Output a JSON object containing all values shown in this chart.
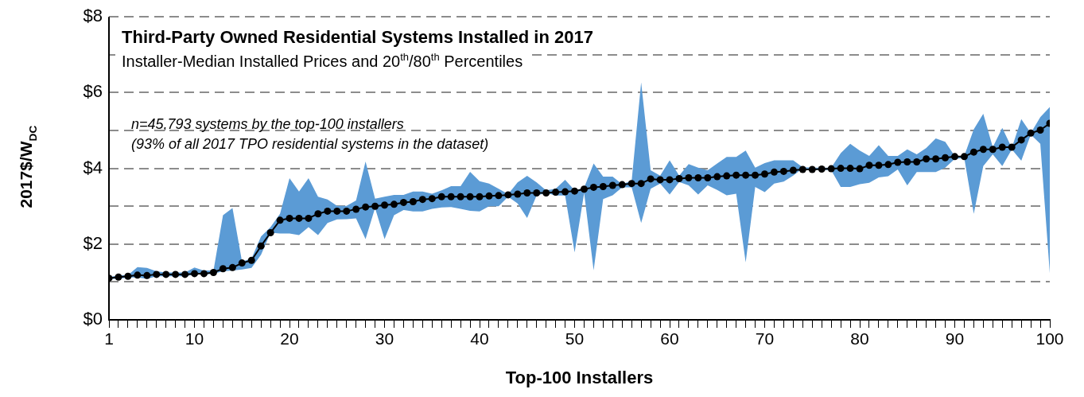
{
  "chart_data": {
    "type": "line",
    "title": "Third-Party Owned Residential Systems Installed in 2017",
    "subtitle": "Installer-Median  Installed Prices and 20$^{th}$/80$^{th}$ Percentiles",
    "xlabel": "Top-100 Installers",
    "ylabel": "2017$/W$_{DC}$",
    "annotations": [
      "n=45,793 systems by the top-100 installers",
      "(93% of all 2017 TPO residential systems in the dataset)"
    ],
    "x": [
      1,
      2,
      3,
      4,
      5,
      6,
      7,
      8,
      9,
      10,
      11,
      12,
      13,
      14,
      15,
      16,
      17,
      18,
      19,
      20,
      21,
      22,
      23,
      24,
      25,
      26,
      27,
      28,
      29,
      30,
      31,
      32,
      33,
      34,
      35,
      36,
      37,
      38,
      39,
      40,
      41,
      42,
      43,
      44,
      45,
      46,
      47,
      48,
      49,
      50,
      51,
      52,
      53,
      54,
      55,
      56,
      57,
      58,
      59,
      60,
      61,
      62,
      63,
      64,
      65,
      66,
      67,
      68,
      69,
      70,
      71,
      72,
      73,
      74,
      75,
      76,
      77,
      78,
      79,
      80,
      81,
      82,
      83,
      84,
      85,
      86,
      87,
      88,
      89,
      90,
      91,
      92,
      93,
      94,
      95,
      96,
      97,
      98,
      99,
      100
    ],
    "series": [
      {
        "color": "#000000",
        "colors": [
          "#5b9bd5",
          "#5b9bd5",
          "#5b9bd5",
          "#5b9bd5",
          "#5b9bd5",
          "#5b9bd5",
          "#5b9bd5",
          "#5b9bd5",
          "#5b9bd5",
          "#5b9bd5",
          "#5b9bd5",
          "#5b9bd5",
          "#5b9bd5",
          "#5b9bd5",
          "#5b9bd5",
          "#5b9bd5",
          "#5b9bd5",
          "#5b9bd5",
          "#5b9bd5",
          "#5b9bd5",
          "#5b9bd5",
          "#5b9bd5",
          "#5b9bd5",
          "#5b9bd5",
          "#5b9bd5",
          "#5b9bd5",
          "#5b9bd5",
          "#5b9bd5",
          "#5b9bd5",
          "#5b9bd5",
          "#5b9bd5",
          "#5b9bd5",
          "#5b9bd5",
          "#5b9bd5",
          "#5b9bd5",
          "#5b9bd5",
          "#5b9bd5",
          "#5b9bd5",
          "#5b9bd5",
          "#5b9bd5",
          "#5b9bd5",
          "#5b9bd5",
          "#5b9bd5",
          "#5b9bd5",
          "#5b9bd5",
          "#5b9bd5",
          "#5b9bd5",
          "#5b9bd5",
          "#5b9bd5",
          "#5b9bd5",
          "#5b9bd5",
          "#5b9bd5",
          "#5b9bd5",
          "#5b9bd5",
          "#5b9bd5",
          "#5b9bd5",
          "#5b9bd5",
          "#5b9bd5",
          "#5b9bd5",
          "#5b9bd5",
          "#5b9bd5",
          "#5b9bd5",
          "#5b9bd5",
          "#5b9bd5",
          "#5b9bd5",
          "#5b9bd5",
          "#5b9bd5",
          "#5b9bd5",
          "#5b9bd5",
          "#5b9bd5",
          "#5b9bd5",
          "#5b9bd5",
          "#5b9bd5",
          "#5b9bd5",
          "#5b9bd5",
          "#5b9bd5",
          "#5b9bd5",
          "#5b9bd5",
          "#5b9bd5",
          "#5b9bd5",
          "#5b9bd5",
          "#5b9bd5",
          "#5b9bd5",
          "#5b9bd5",
          "#5b9bd5",
          "#5b9bd5",
          "#5b9bd5",
          "#5b9bd5",
          "#5b9bd5",
          "#5b9bd5",
          "#5b9bd5",
          "#5b9bd5",
          "#5b9bd5",
          "#5b9bd5",
          "#5b9bd5",
          "#5b9bd5",
          "#5b9bd5",
          "#5b9bd5",
          "#5b9bd5",
          "#5b9bd5"
        ],
        "values": [
          1.1,
          1.13,
          1.15,
          1.18,
          1.17,
          1.2,
          1.2,
          1.2,
          1.2,
          1.22,
          1.22,
          1.25,
          1.35,
          1.38,
          1.5,
          1.57,
          1.95,
          2.3,
          2.63,
          2.68,
          2.68,
          2.68,
          2.8,
          2.87,
          2.87,
          2.87,
          2.92,
          2.98,
          3.0,
          3.03,
          3.05,
          3.1,
          3.12,
          3.18,
          3.2,
          3.25,
          3.25,
          3.25,
          3.25,
          3.25,
          3.27,
          3.28,
          3.3,
          3.32,
          3.35,
          3.35,
          3.35,
          3.37,
          3.38,
          3.4,
          3.45,
          3.5,
          3.52,
          3.55,
          3.57,
          3.6,
          3.6,
          3.72,
          3.7,
          3.7,
          3.73,
          3.75,
          3.75,
          3.75,
          3.78,
          3.8,
          3.82,
          3.82,
          3.82,
          3.85,
          3.9,
          3.92,
          3.95,
          3.97,
          3.97,
          3.98,
          3.99,
          4.0,
          4.0,
          3.99,
          4.08,
          4.08,
          4.1,
          4.16,
          4.17,
          4.17,
          4.25,
          4.25,
          4.28,
          4.31,
          4.31,
          4.43,
          4.5,
          4.5,
          4.56,
          4.56,
          4.75,
          4.93,
          5.01,
          5.19
        ],
        "lower": [
          1.08,
          1.08,
          1.12,
          1.12,
          1.08,
          1.15,
          1.15,
          1.15,
          1.15,
          1.2,
          1.2,
          1.22,
          1.28,
          1.3,
          1.33,
          1.37,
          1.72,
          2.3,
          2.28,
          2.28,
          2.24,
          2.45,
          2.24,
          2.56,
          2.65,
          2.66,
          2.68,
          2.13,
          2.95,
          2.13,
          2.76,
          2.9,
          2.86,
          2.86,
          2.93,
          2.97,
          2.98,
          2.93,
          2.88,
          2.86,
          3.0,
          3.0,
          3.25,
          3.07,
          2.69,
          3.28,
          3.35,
          3.28,
          3.28,
          1.78,
          3.35,
          1.31,
          3.19,
          3.29,
          3.5,
          3.5,
          2.56,
          3.46,
          3.6,
          3.31,
          3.64,
          3.55,
          3.31,
          3.55,
          3.43,
          3.29,
          3.33,
          1.52,
          3.51,
          3.37,
          3.6,
          3.65,
          3.81,
          4.0,
          3.96,
          3.96,
          3.95,
          3.51,
          3.51,
          3.58,
          3.62,
          3.76,
          3.79,
          3.97,
          3.55,
          3.9,
          3.9,
          3.9,
          4.02,
          4.25,
          4.27,
          2.8,
          4.06,
          4.37,
          4.06,
          4.5,
          4.2,
          4.89,
          4.65,
          1.23
        ],
        "upper": [
          1.13,
          1.17,
          1.18,
          1.39,
          1.37,
          1.28,
          1.25,
          1.25,
          1.25,
          1.38,
          1.3,
          1.3,
          2.76,
          2.95,
          1.54,
          1.62,
          2.2,
          2.45,
          2.8,
          3.74,
          3.39,
          3.74,
          3.25,
          3.18,
          3.01,
          3.01,
          3.15,
          4.18,
          3.2,
          3.25,
          3.3,
          3.3,
          3.39,
          3.39,
          3.33,
          3.42,
          3.53,
          3.53,
          3.91,
          3.66,
          3.6,
          3.46,
          3.32,
          3.63,
          3.8,
          3.63,
          3.42,
          3.46,
          3.7,
          3.42,
          3.49,
          4.13,
          3.78,
          3.78,
          3.58,
          3.67,
          6.27,
          3.95,
          3.81,
          4.21,
          3.81,
          4.11,
          4.02,
          3.95,
          4.13,
          4.3,
          4.3,
          4.47,
          4.02,
          4.14,
          4.21,
          4.21,
          4.21,
          4.03,
          4.02,
          4.02,
          4.02,
          4.4,
          4.65,
          4.47,
          4.33,
          4.61,
          4.33,
          4.33,
          4.5,
          4.37,
          4.54,
          4.79,
          4.7,
          4.32,
          4.33,
          5.03,
          5.44,
          4.56,
          5.07,
          4.54,
          5.3,
          4.93,
          5.35,
          5.62
        ]
      }
    ],
    "xlim": [
      1,
      100
    ],
    "xticks": [
      1,
      {
        "value": 2,
        "label": null
      },
      {
        "value": 3,
        "label": null
      },
      {
        "value": 4,
        "label": null
      },
      {
        "value": 5,
        "label": null
      },
      {
        "value": 6,
        "label": null
      },
      {
        "value": 7,
        "label": null
      },
      {
        "value": 8,
        "label": null
      },
      {
        "value": 9,
        "label": null
      },
      10,
      {
        "value": 11,
        "label": null
      },
      {
        "value": 12,
        "label": null
      },
      {
        "value": 13,
        "label": null
      },
      {
        "value": 14,
        "label": null
      },
      {
        "value": 15,
        "label": null
      },
      {
        "value": 16,
        "label": null
      },
      {
        "value": 17,
        "label": null
      },
      {
        "value": 18,
        "label": null
      },
      {
        "value": 19,
        "label": null
      },
      20,
      {
        "value": 21,
        "label": null
      },
      {
        "value": 22,
        "label": null
      },
      {
        "value": 23,
        "label": null
      },
      {
        "value": 24,
        "label": null
      },
      {
        "value": 25,
        "label": null
      },
      {
        "value": 26,
        "label": null
      },
      {
        "value": 27,
        "label": null
      },
      {
        "value": 28,
        "label": null
      },
      {
        "value": 29,
        "label": null
      },
      30,
      {
        "value": 31,
        "label": null
      },
      {
        "value": 32,
        "label": null
      },
      {
        "value": 33,
        "label": null
      },
      {
        "value": 34,
        "label": null
      },
      {
        "value": 35,
        "label": null
      },
      {
        "value": 36,
        "label": null
      },
      {
        "value": 37,
        "label": null
      },
      {
        "value": 38,
        "label": null
      },
      {
        "value": 39,
        "label": null
      },
      40,
      {
        "value": 41,
        "label": null
      },
      {
        "value": 42,
        "label": null
      },
      {
        "value": 43,
        "label": null
      },
      {
        "value": 44,
        "label": null
      },
      {
        "value": 45,
        "label": null
      },
      {
        "value": 46,
        "label": null
      },
      {
        "value": 47,
        "label": null
      },
      {
        "value": 48,
        "label": null
      },
      {
        "value": 49,
        "label": null
      },
      50,
      {
        "value": 51,
        "label": null
      },
      {
        "value": 52,
        "label": null
      },
      {
        "value": 53,
        "label": null
      },
      {
        "value": 54,
        "label": null
      },
      {
        "value": 55,
        "label": null
      },
      {
        "value": 56,
        "label": null
      },
      {
        "value": 57,
        "label": null
      },
      {
        "value": 58,
        "label": null
      },
      {
        "value": 59,
        "label": null
      },
      60,
      {
        "value": 61,
        "label": null
      },
      {
        "value": 62,
        "label": null
      },
      {
        "value": 63,
        "label": null
      },
      {
        "value": 64,
        "label": null
      },
      {
        "value": 65,
        "label": null
      },
      {
        "value": 66,
        "label": null
      },
      {
        "value": 67,
        "label": null
      },
      {
        "value": 68,
        "label": null
      },
      {
        "value": 69,
        "label": null
      },
      70,
      {
        "value": 71,
        "label": null
      },
      {
        "value": 72,
        "label": null
      },
      {
        "value": 73,
        "label": null
      },
      {
        "value": 74,
        "label": null
      },
      {
        "value": 75,
        "label": null
      },
      {
        "value": 76,
        "label": null
      },
      {
        "value": 77,
        "label": null
      },
      {
        "value": 78,
        "label": null
      },
      {
        "value": 79,
        "label": null
      },
      80,
      {
        "value": 81,
        "label": null
      },
      {
        "value": 82,
        "label": null
      },
      {
        "value": 83,
        "label": null
      },
      {
        "value": 84,
        "label": null
      },
      {
        "value": 85,
        "label": null
      },
      {
        "value": 86,
        "label": null
      },
      {
        "value": 87,
        "label": null
      },
      {
        "value": 88,
        "label": null
      },
      {
        "value": 89,
        "label": null
      },
      90,
      {
        "value": 91,
        "label": null
      },
      {
        "value": 92,
        "label": null
      },
      {
        "value": 93,
        "label": null
      },
      {
        "value": 94,
        "label": null
      },
      {
        "value": 95,
        "label": null
      },
      {
        "value": 96,
        "label": null
      },
      {
        "value": 97,
        "label": null
      },
      {
        "value": 98,
        "label": null
      },
      {
        "value": 99,
        "label": null
      },
      100
    ],
    "ylim": [
      0,
      8
    ],
    "yticks": [
      {
        "value": 0,
        "label": "$0"
      },
      {
        "value": 1,
        "label": null
      },
      {
        "value": 2,
        "label": "$2"
      },
      {
        "value": 3,
        "label": null
      },
      {
        "value": 4,
        "label": "$4"
      },
      {
        "value": 5,
        "label": null
      },
      {
        "value": 6,
        "label": "$6"
      },
      {
        "value": 7,
        "label": null
      },
      {
        "value": 8,
        "label": "$8"
      }
    ],
    "grid": "y",
    "legend": false,
    "marker": "circle",
    "line_style": "solid"
  }
}
